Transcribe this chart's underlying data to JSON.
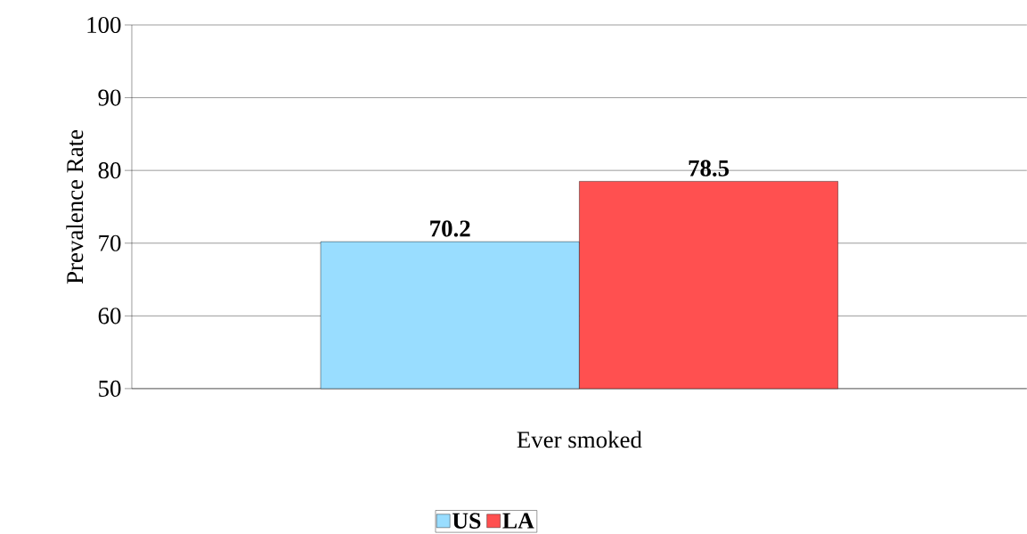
{
  "chart_data": {
    "type": "bar",
    "categories": [
      "Ever smoked"
    ],
    "ylabel": "Prevalence Rate",
    "series": [
      {
        "name": "US",
        "color": "#99ddff",
        "values": [
          70.2
        ]
      },
      {
        "name": "LA",
        "color": "#ff5050",
        "values": [
          78.5
        ]
      }
    ],
    "ylim": [
      50,
      100
    ],
    "yticks": [
      50,
      60,
      70,
      80,
      90,
      100
    ],
    "grid": "y",
    "legend": "bottom",
    "data_labels": true
  }
}
